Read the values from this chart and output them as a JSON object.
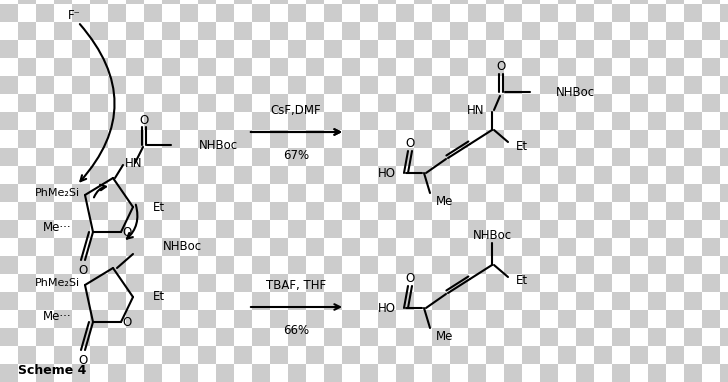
{
  "background_checker_color1": "#cccccc",
  "background_checker_color2": "#ffffff",
  "checker_size": 18,
  "line_color": "#000000",
  "line_width": 1.5,
  "font_size_label": 8.5,
  "font_size_scheme": 9,
  "reaction1_reagent": "CsF,DMF",
  "reaction1_yield": "67%",
  "reaction2_reagent": "TBAF, THF",
  "reaction2_yield": "66%",
  "scheme_label": "Scheme 4",
  "figsize": [
    7.28,
    3.82
  ],
  "dpi": 100
}
